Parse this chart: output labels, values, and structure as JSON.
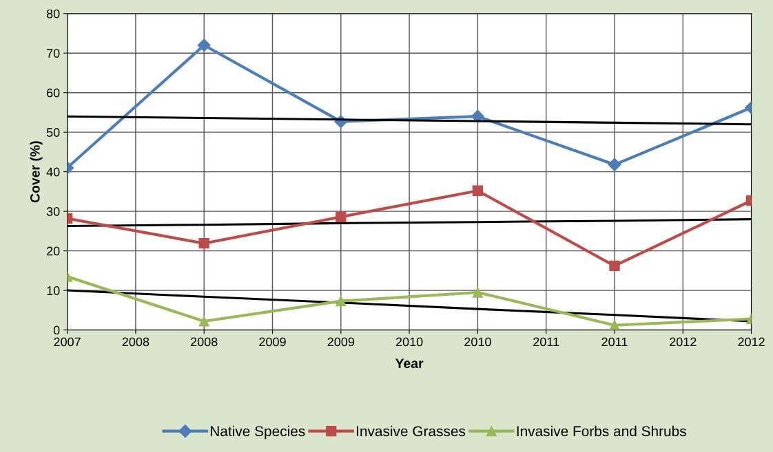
{
  "chart_data": {
    "type": "line",
    "xlabel": "Year",
    "ylabel": "Cover (%)",
    "x": [
      2007,
      2008,
      2009,
      2010,
      2011,
      2012
    ],
    "series": [
      {
        "name": "Native Species",
        "color": "#4a7ebb",
        "marker": "diamond",
        "values": [
          41,
          72,
          52.7,
          54,
          41.8,
          56.2
        ]
      },
      {
        "name": "Invasive Grasses",
        "color": "#be4b48",
        "marker": "square",
        "values": [
          28.2,
          21.9,
          28.6,
          35.2,
          16.2,
          32.7
        ]
      },
      {
        "name": "Invasive Forbs and Shrubs",
        "color": "#98b954",
        "marker": "triangle",
        "values": [
          13.5,
          2.2,
          7.3,
          9.5,
          1.2,
          2.8
        ]
      },
      {
        "type": "line",
        "color": "#000000",
        "marker": "none",
        "values": [
          54,
          53.6,
          53.2,
          52.8,
          52.4,
          52
        ]
      },
      {
        "type": "line",
        "color": "#000000",
        "marker": "none",
        "values": [
          26.3,
          26.6,
          27,
          27.3,
          27.6,
          28
        ]
      },
      {
        "type": "line",
        "color": "#000000",
        "marker": "none",
        "values": [
          10,
          8.4,
          6.9,
          5.3,
          3.8,
          2.2
        ]
      }
    ],
    "xlim": [
      2007,
      2012
    ],
    "xticks": [
      2007,
      {
        "value": 2007.5,
        "label": "2008"
      },
      2008,
      {
        "value": 2008.5,
        "label": "2009"
      },
      2009,
      {
        "value": 2009.5,
        "label": "2010"
      },
      2010,
      {
        "value": 2010.5,
        "label": "2011"
      },
      2011,
      {
        "value": 2011.5,
        "label": "2012"
      },
      2012
    ],
    "ylim": [
      0,
      80
    ],
    "yticks": [
      0,
      10,
      20,
      30,
      40,
      50,
      60,
      70,
      80
    ],
    "grid": true,
    "legend": "bottom",
    "line_style": "solid"
  }
}
